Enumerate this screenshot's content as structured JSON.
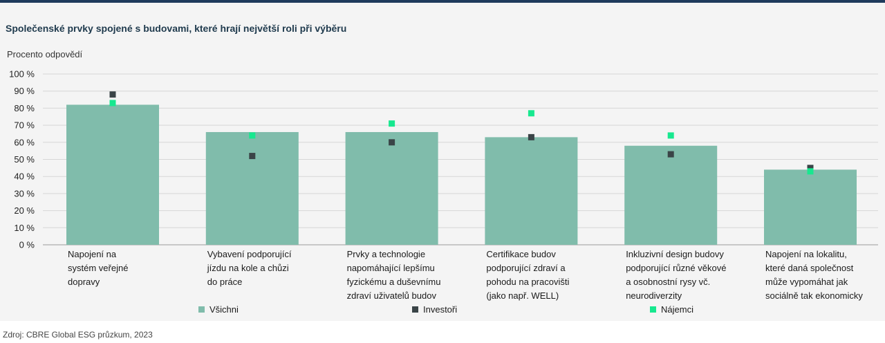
{
  "chart_data": {
    "type": "bar",
    "title": "Společenské prvky spojené s budovami, které hrají největší roli při výběru",
    "ylabel": "Procento odpovědí",
    "ylim": [
      0,
      100
    ],
    "yticks": [
      "0 %",
      "10 %",
      "20 %",
      "30 %",
      "40 %",
      "50 %",
      "60 %",
      "70 %",
      "80 %",
      "90 %",
      "100 %"
    ],
    "categories": [
      [
        "Napojení na",
        "systém veřejné",
        "dopravy"
      ],
      [
        "Vybavení podporující",
        "jízdu na kole a chůzi",
        "do práce"
      ],
      [
        "Prvky a technologie",
        "napomáhající lepšímu",
        "fyzickému a duševnímu",
        "zdraví uživatelů budov"
      ],
      [
        "Certifikace budov",
        "podporující zdraví a",
        "pohodu na pracovišti",
        "(jako např. WELL)"
      ],
      [
        "Inkluzivní design budovy",
        "podporující různé věkové",
        "a osobnostní rysy vč.",
        "neurodiverzity"
      ],
      [
        "Napojení na lokalitu,",
        "které daná společnost",
        "může vypomáhat jak",
        "sociálně tak ekonomicky"
      ]
    ],
    "series": [
      {
        "name": "Všichni",
        "kind": "bar",
        "color": "#80bcab",
        "values": [
          82,
          66,
          66,
          63,
          58,
          44
        ]
      },
      {
        "name": "Investoři",
        "kind": "marker",
        "color": "#3a4447",
        "values": [
          88,
          52,
          60,
          63,
          53,
          45
        ]
      },
      {
        "name": "Nájemci",
        "kind": "marker",
        "color": "#17e88f",
        "values": [
          83,
          64,
          71,
          77,
          64,
          43
        ]
      }
    ],
    "legend_position": "bottom"
  },
  "source": "Zdroj: CBRE Global ESG průzkum, 2023"
}
